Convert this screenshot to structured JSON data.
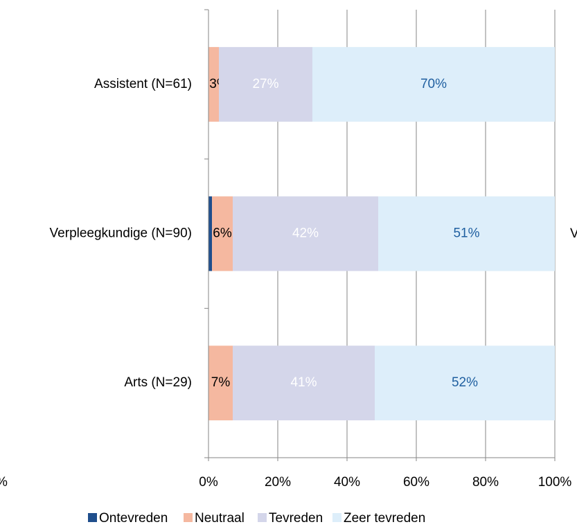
{
  "chart_data": {
    "type": "stacked_barh",
    "categories": [
      "Assistent (N=61)",
      "Verpleegkundige (N=90)",
      "Arts (N=29)"
    ],
    "series": [
      {
        "name": "Ontevreden",
        "color": "#1f4e8c",
        "label_color": "#000000",
        "values": [
          0,
          1,
          0
        ],
        "value_labels": [
          null,
          null,
          null
        ]
      },
      {
        "name": "Neutraal",
        "color": "#f5b8a0",
        "label_color": "#000000",
        "values": [
          3,
          6,
          7
        ],
        "value_labels": [
          "3%",
          "6%",
          "7%"
        ]
      },
      {
        "name": "Tevreden",
        "color": "#d4d6ea",
        "label_color": "#ffffff",
        "values": [
          27,
          42,
          41
        ],
        "value_labels": [
          "27%",
          "42%",
          "41%"
        ]
      },
      {
        "name": "Zeer tevreden",
        "color": "#ddeefa",
        "label_color": "#1f5fa0",
        "values": [
          70,
          51,
          52
        ],
        "value_labels": [
          "70%",
          "51%",
          "52%"
        ]
      }
    ],
    "xlim": [
      0,
      100
    ],
    "xticks": [
      {
        "value": 0,
        "label": "0%"
      },
      {
        "value": 20,
        "label": "20%"
      },
      {
        "value": 40,
        "label": "40%"
      },
      {
        "value": 60,
        "label": "60%"
      },
      {
        "value": 80,
        "label": "80%"
      },
      {
        "value": 100,
        "label": "100%"
      }
    ],
    "grid": true,
    "legend": "bottom",
    "annotations": [
      "%",
      "V"
    ]
  }
}
